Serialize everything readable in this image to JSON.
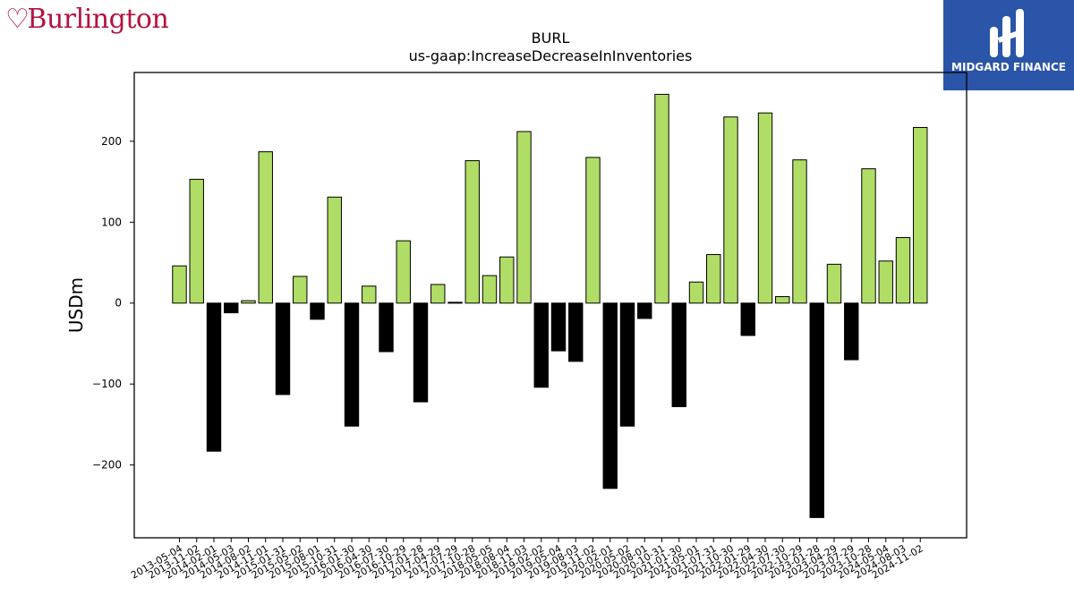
{
  "branding": {
    "company_logo_text": "Burlington",
    "provider_logo_text": "MIDGARD FINANCE",
    "accent_color": "#b5123e",
    "provider_bg_color": "#2a55a8"
  },
  "chart_data": {
    "type": "bar",
    "title": "BURL",
    "subtitle": "us-gaap:IncreaseDecreaseInInventories",
    "xlabel": "",
    "ylabel": "USDm",
    "ylim": [
      -290,
      285
    ],
    "yticks": [
      -200,
      -100,
      0,
      100,
      200
    ],
    "grid": false,
    "positive_color": "#b0dd66",
    "negative_color": "#000000",
    "categories": [
      "2013-05-04",
      "2013-11-02",
      "2014-02-01",
      "2014-05-03",
      "2014-08-02",
      "2014-11-01",
      "2015-01-31",
      "2015-05-02",
      "2015-08-01",
      "2015-10-31",
      "2016-01-30",
      "2016-04-30",
      "2016-07-30",
      "2016-10-29",
      "2017-01-28",
      "2017-04-29",
      "2017-07-29",
      "2017-10-28",
      "2018-05-05",
      "2018-08-04",
      "2018-11-03",
      "2019-02-02",
      "2019-05-04",
      "2019-08-03",
      "2019-11-02",
      "2020-02-01",
      "2020-05-02",
      "2020-08-01",
      "2020-10-31",
      "2021-01-30",
      "2021-05-01",
      "2021-07-31",
      "2021-10-30",
      "2022-01-29",
      "2022-04-30",
      "2022-07-30",
      "2022-10-29",
      "2023-01-28",
      "2023-04-29",
      "2023-07-29",
      "2023-10-28",
      "2024-05-04",
      "2024-08-03",
      "2024-11-02"
    ],
    "values": [
      46,
      153,
      -183,
      -12,
      3,
      187,
      -113,
      33,
      -20,
      131,
      -152,
      21,
      -60,
      77,
      -122,
      23,
      1,
      176,
      34,
      57,
      212,
      -104,
      -59,
      -72,
      180,
      -229,
      -152,
      -19,
      258,
      -128,
      26,
      60,
      230,
      -40,
      235,
      8,
      177,
      -265,
      48,
      -70,
      166,
      52,
      81,
      217
    ]
  }
}
